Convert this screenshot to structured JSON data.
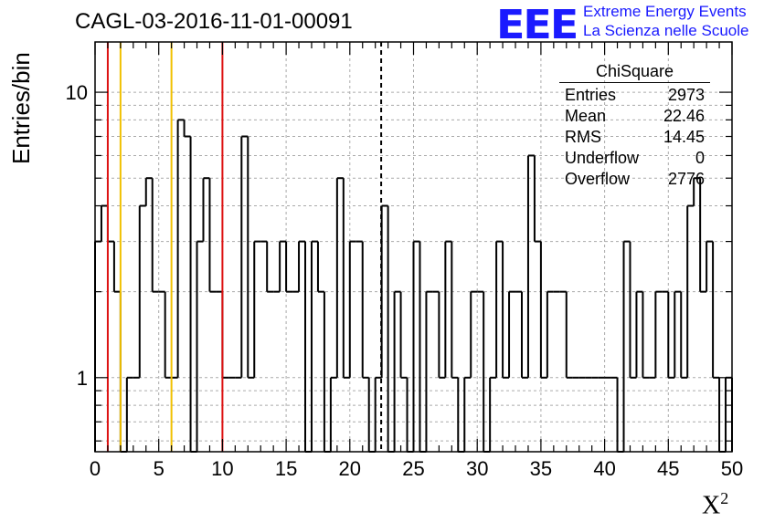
{
  "title": "CAGL-03-2016-11-01-00091",
  "logo": {
    "mark": "EEE",
    "line1": "Extreme Energy Events",
    "line2": "La Scienza nelle Scuole",
    "color": "#1a1aff"
  },
  "stats": {
    "title": "ChiSquare",
    "rows": [
      {
        "label": "Entries",
        "value": "2973"
      },
      {
        "label": "Mean",
        "value": "22.46"
      },
      {
        "label": "RMS",
        "value": "14.45"
      },
      {
        "label": "Underflow",
        "value": "0"
      },
      {
        "label": "Overflow",
        "value": "2776"
      }
    ]
  },
  "chart_data": {
    "type": "histogram",
    "title": "CAGL-03-2016-11-01-00091",
    "xlabel": "X",
    "xlabel_superscript": "2",
    "ylabel": "Entries/bin",
    "xlim": [
      0,
      50
    ],
    "ylim": [
      0.55,
      15
    ],
    "y_scale": "log",
    "grid": true,
    "bin_width": 0.5,
    "x_ticks": [
      0,
      5,
      10,
      15,
      20,
      25,
      30,
      35,
      40,
      45,
      50
    ],
    "y_ticks": [
      1,
      10
    ],
    "counts": [
      3,
      4,
      3,
      2,
      0,
      1,
      1,
      4,
      5,
      2,
      2,
      1,
      1,
      8,
      7,
      0,
      3,
      5,
      2,
      2,
      1,
      1,
      1,
      7,
      1,
      3,
      3,
      2,
      2,
      3,
      2,
      2,
      3,
      0,
      3,
      2,
      0,
      1,
      5,
      1,
      3,
      3,
      1,
      0,
      1,
      4,
      0,
      2,
      1,
      0,
      3,
      0,
      2,
      2,
      1,
      3,
      1,
      0,
      1,
      2,
      2,
      0,
      1,
      3,
      1,
      2,
      2,
      1,
      6,
      3,
      1,
      2,
      2,
      2,
      1,
      1,
      1,
      1,
      1,
      1,
      1,
      1,
      0,
      3,
      1,
      2,
      1,
      1,
      2,
      2,
      1,
      2,
      1,
      4,
      5,
      2,
      3,
      1,
      0,
      1
    ],
    "vertical_lines": [
      {
        "x": 1,
        "color": "#dd1111",
        "style": "solid"
      },
      {
        "x": 2,
        "color": "#f0c000",
        "style": "solid"
      },
      {
        "x": 6,
        "color": "#f0c000",
        "style": "solid"
      },
      {
        "x": 10,
        "color": "#dd1111",
        "style": "solid"
      },
      {
        "x": 22.46,
        "color": "#000000",
        "style": "dashed"
      }
    ]
  }
}
